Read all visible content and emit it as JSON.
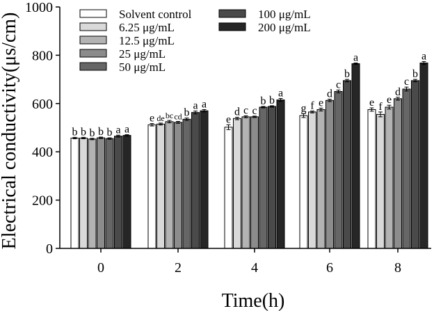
{
  "chart_data": {
    "type": "bar",
    "title": "",
    "xlabel": "Time(h)",
    "ylabel": "Electrical conductivity(μs/cm)",
    "ylim": [
      0,
      1000
    ],
    "yticks": [
      "0",
      "200",
      "400",
      "600",
      "800",
      "1000"
    ],
    "categories": [
      "0",
      "2",
      "4",
      "6",
      "8"
    ],
    "legend_position": "top-left",
    "series": [
      {
        "name": "Solvent control",
        "color": "#ffffff",
        "values": [
          457,
          512,
          502,
          550,
          575
        ],
        "errors": [
          3,
          5,
          10,
          8,
          7
        ],
        "labels": [
          "b",
          "e",
          "e",
          "g",
          "e"
        ]
      },
      {
        "name": "6.25 μg/mL",
        "color": "#d9d9d9",
        "values": [
          457,
          515,
          538,
          565,
          555
        ],
        "errors": [
          3,
          4,
          5,
          4,
          10
        ],
        "labels": [
          "b",
          "de",
          "d",
          "f",
          "f"
        ]
      },
      {
        "name": "12.5 μg/mL",
        "color": "#b3b3b3",
        "values": [
          453,
          525,
          545,
          575,
          585
        ],
        "errors": [
          3,
          5,
          4,
          6,
          8
        ],
        "labels": [
          "b",
          "bc",
          "c",
          "e",
          "e"
        ]
      },
      {
        "name": "25 μg/mL",
        "color": "#8c8c8c",
        "values": [
          458,
          522,
          545,
          613,
          620
        ],
        "errors": [
          3,
          4,
          3,
          5,
          6
        ],
        "labels": [
          "b",
          "cd",
          "c",
          "d",
          "d"
        ]
      },
      {
        "name": "50 μg/mL",
        "color": "#666666",
        "values": [
          455,
          535,
          585,
          650,
          660
        ],
        "errors": [
          3,
          5,
          3,
          6,
          8
        ],
        "labels": [
          "b",
          "b",
          "b",
          "c",
          "c"
        ]
      },
      {
        "name": "100 μg/mL",
        "color": "#4a4a4a",
        "values": [
          465,
          563,
          588,
          695,
          695
        ],
        "errors": [
          4,
          6,
          3,
          5,
          5
        ],
        "labels": [
          "a",
          "a",
          "b",
          "b",
          "b"
        ]
      },
      {
        "name": "200 μg/mL",
        "color": "#262626",
        "values": [
          468,
          570,
          615,
          765,
          768
        ],
        "errors": [
          3,
          5,
          6,
          3,
          6
        ],
        "labels": [
          "a",
          "a",
          "a",
          "a",
          "a"
        ]
      }
    ]
  }
}
